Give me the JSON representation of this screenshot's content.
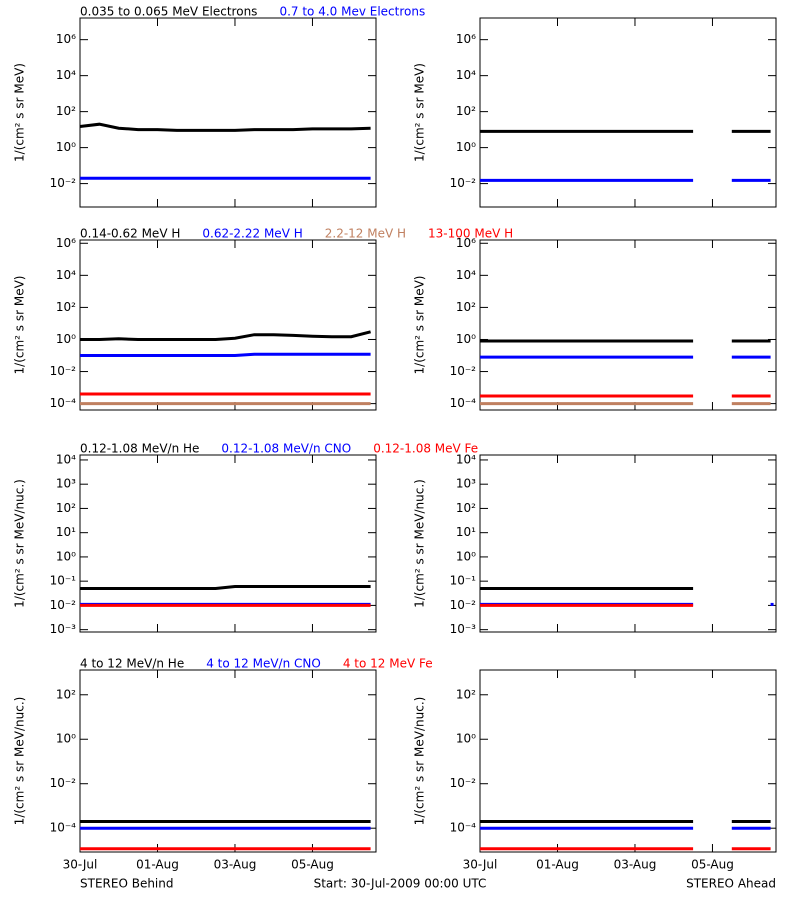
{
  "footer": {
    "left": "STEREO Behind",
    "center": "Start: 30-Jul-2009 00:00 UTC",
    "right": "STEREO Ahead"
  },
  "chart_data": [
    {
      "type": "line",
      "log_y": true,
      "ylabel": "1/(cm² s sr MeV)",
      "ylim": [
        0.0005,
        16000000
      ],
      "yticks": [
        {
          "value": 0.01,
          "label": "10⁻²"
        },
        {
          "value": 1,
          "label": "10⁰"
        },
        {
          "value": 100,
          "label": "10²"
        },
        {
          "value": 10000,
          "label": "10⁴"
        },
        {
          "value": 1000000,
          "label": "10⁶"
        }
      ],
      "x": [
        0,
        0.5,
        1,
        1.5,
        2,
        2.5,
        3,
        3.5,
        4,
        4.5,
        5,
        5.5,
        6,
        6.5,
        7,
        7.5
      ],
      "xlim": [
        0,
        7.64
      ],
      "xticks": [
        0,
        2,
        4,
        6
      ],
      "series": [
        {
          "name": "0.035 to 0.065 MeV Electrons",
          "color": "#000000",
          "behind": [
            15,
            20,
            12,
            10,
            10,
            9,
            9,
            9,
            9,
            10,
            10,
            10,
            11,
            11,
            11,
            12
          ],
          "ahead": [
            8,
            8,
            8,
            8,
            8,
            8,
            8,
            8,
            8,
            8,
            8,
            8,
            null,
            8,
            8,
            8
          ]
        },
        {
          "name": "0.7 to 4.0 Mev Electrons",
          "color": "#0000ff",
          "behind": [
            0.02,
            0.02,
            0.02,
            0.02,
            0.02,
            0.02,
            0.02,
            0.02,
            0.02,
            0.02,
            0.02,
            0.02,
            0.02,
            0.02,
            0.02,
            0.02
          ],
          "ahead": [
            0.015,
            0.015,
            0.015,
            0.015,
            0.015,
            0.015,
            0.015,
            0.015,
            0.015,
            0.015,
            0.015,
            0.015,
            null,
            0.015,
            0.015,
            0.015
          ]
        }
      ]
    },
    {
      "type": "line",
      "log_y": true,
      "ylabel": "1/(cm² s sr MeV)",
      "ylim": [
        4e-05,
        1600000
      ],
      "yticks": [
        {
          "value": 0.0001,
          "label": "10⁻⁴"
        },
        {
          "value": 0.01,
          "label": "10⁻²"
        },
        {
          "value": 1,
          "label": "10⁰"
        },
        {
          "value": 100,
          "label": "10²"
        },
        {
          "value": 10000,
          "label": "10⁴"
        },
        {
          "value": 1000000,
          "label": "10⁶"
        }
      ],
      "x": [
        0,
        0.5,
        1,
        1.5,
        2,
        2.5,
        3,
        3.5,
        4,
        4.5,
        5,
        5.5,
        6,
        6.5,
        7,
        7.5
      ],
      "xlim": [
        0,
        7.64
      ],
      "xticks": [
        0,
        2,
        4,
        6
      ],
      "series": [
        {
          "name": "0.14-0.62 MeV H",
          "color": "#000000",
          "behind": [
            1,
            1,
            1.1,
            1,
            1,
            1,
            1,
            1,
            1.2,
            2,
            2,
            1.8,
            1.6,
            1.5,
            1.5,
            3
          ],
          "ahead": [
            0.8,
            0.8,
            0.8,
            0.8,
            0.8,
            0.8,
            0.8,
            0.8,
            0.8,
            0.8,
            0.8,
            0.8,
            null,
            0.8,
            0.8,
            0.8
          ]
        },
        {
          "name": "0.62-2.22 MeV H",
          "color": "#0000ff",
          "behind": [
            0.1,
            0.1,
            0.1,
            0.1,
            0.1,
            0.1,
            0.1,
            0.1,
            0.1,
            0.12,
            0.12,
            0.12,
            0.12,
            0.12,
            0.12,
            0.12
          ],
          "ahead": [
            0.08,
            0.08,
            0.08,
            0.08,
            0.08,
            0.08,
            0.08,
            0.08,
            0.08,
            0.08,
            0.08,
            0.08,
            null,
            0.08,
            0.08,
            0.08
          ]
        },
        {
          "name": "2.2-12 MeV H",
          "color": "#c08060",
          "behind": [
            0.0001,
            0.0001,
            0.0001,
            0.0001,
            0.0001,
            0.0001,
            0.0001,
            0.0001,
            0.0001,
            0.0001,
            0.0001,
            0.0001,
            0.0001,
            0.0001,
            0.0001,
            0.0001
          ],
          "ahead": [
            0.0001,
            0.0001,
            0.0001,
            0.0001,
            0.0001,
            0.0001,
            0.0001,
            0.0001,
            0.0001,
            0.0001,
            0.0001,
            0.0001,
            null,
            0.0001,
            0.0001,
            0.0001
          ]
        },
        {
          "name": "13-100 MeV H",
          "color": "#ff0000",
          "behind": [
            0.0004,
            0.0004,
            0.0004,
            0.0004,
            0.0004,
            0.0004,
            0.0004,
            0.0004,
            0.0004,
            0.0004,
            0.0004,
            0.0004,
            0.0004,
            0.0004,
            0.0004,
            0.0004
          ],
          "ahead": [
            0.0003,
            0.0003,
            0.0003,
            0.0003,
            0.0003,
            0.0003,
            0.0003,
            0.0003,
            0.0003,
            0.0003,
            0.0003,
            0.0003,
            null,
            0.0003,
            0.0003,
            0.0003
          ]
        }
      ]
    },
    {
      "type": "line",
      "log_y": true,
      "ylabel": "1/(cm² s sr MeV/nuc.)",
      "ylim": [
        0.0008,
        16000
      ],
      "yticks": [
        {
          "value": 0.001,
          "label": "10⁻³"
        },
        {
          "value": 0.01,
          "label": "10⁻²"
        },
        {
          "value": 0.1,
          "label": "10⁻¹"
        },
        {
          "value": 1,
          "label": "10⁰"
        },
        {
          "value": 10,
          "label": "10¹"
        },
        {
          "value": 100,
          "label": "10²"
        },
        {
          "value": 1000,
          "label": "10³"
        },
        {
          "value": 10000,
          "label": "10⁴"
        }
      ],
      "x": [
        0,
        0.5,
        1,
        1.5,
        2,
        2.5,
        3,
        3.5,
        4,
        4.5,
        5,
        5.5,
        6,
        6.5,
        7,
        7.5
      ],
      "xlim": [
        0,
        7.64
      ],
      "xticks": [
        0,
        2,
        4,
        6
      ],
      "series": [
        {
          "name": "0.12-1.08 MeV/n He",
          "color": "#000000",
          "behind": [
            0.05,
            0.05,
            0.05,
            0.05,
            0.05,
            0.05,
            0.05,
            0.05,
            0.06,
            0.06,
            0.06,
            0.06,
            0.06,
            0.06,
            0.06,
            0.06
          ],
          "ahead": [
            0.05,
            0.05,
            0.05,
            0.05,
            0.05,
            0.05,
            0.05,
            0.05,
            0.05,
            0.05,
            0.05,
            0.05,
            null,
            null,
            null,
            null
          ]
        },
        {
          "name": "0.12-1.08 MeV/n CNO",
          "color": "#0000ff",
          "behind": [
            0.011,
            0.011,
            0.011,
            0.011,
            0.011,
            0.011,
            0.011,
            0.011,
            0.011,
            0.011,
            0.011,
            0.011,
            0.011,
            0.011,
            0.011,
            0.011
          ],
          "ahead": [
            0.011,
            0.011,
            0.011,
            0.011,
            0.011,
            0.011,
            0.011,
            0.011,
            0.011,
            0.011,
            0.011,
            0.011,
            null,
            null,
            null,
            0.011
          ]
        },
        {
          "name": "0.12-1.08 MeV Fe",
          "color": "#ff0000",
          "behind": [
            0.01,
            0.01,
            0.01,
            0.01,
            0.01,
            0.01,
            0.01,
            0.01,
            0.01,
            0.01,
            0.01,
            0.01,
            0.01,
            0.01,
            0.01,
            0.01
          ],
          "ahead": [
            0.01,
            0.01,
            0.01,
            0.01,
            0.01,
            0.01,
            0.01,
            0.01,
            0.01,
            0.01,
            0.01,
            0.01,
            null,
            null,
            null,
            null
          ]
        }
      ]
    },
    {
      "type": "line",
      "log_y": true,
      "ylabel": "1/(cm² s sr MeV/nuc.)",
      "ylim": [
        8.5e-06,
        1300
      ],
      "yticks": [
        {
          "value": 0.0001,
          "label": "10⁻⁴"
        },
        {
          "value": 0.01,
          "label": "10⁻²"
        },
        {
          "value": 1,
          "label": "10⁰"
        },
        {
          "value": 100,
          "label": "10²"
        }
      ],
      "x": [
        0,
        0.5,
        1,
        1.5,
        2,
        2.5,
        3,
        3.5,
        4,
        4.5,
        5,
        5.5,
        6,
        6.5,
        7,
        7.5
      ],
      "xlim": [
        0,
        7.64
      ],
      "xticks": [
        {
          "value": 0,
          "label": "30-Jul"
        },
        {
          "value": 2,
          "label": "01-Aug"
        },
        {
          "value": 4,
          "label": "03-Aug"
        },
        {
          "value": 6,
          "label": "05-Aug"
        }
      ],
      "series": [
        {
          "name": "4 to 12 MeV/n He",
          "color": "#000000",
          "behind": [
            0.0002,
            0.0002,
            0.0002,
            0.0002,
            0.0002,
            0.0002,
            0.0002,
            0.0002,
            0.0002,
            0.0002,
            0.0002,
            0.0002,
            0.0002,
            0.0002,
            0.0002,
            0.0002
          ],
          "ahead": [
            0.0002,
            0.0002,
            0.0002,
            0.0002,
            0.0002,
            0.0002,
            0.0002,
            0.0002,
            0.0002,
            0.0002,
            0.0002,
            0.0002,
            null,
            0.0002,
            0.0002,
            0.0002
          ]
        },
        {
          "name": "4 to 12 MeV/n CNO",
          "color": "#0000ff",
          "behind": [
            0.0001,
            0.0001,
            0.0001,
            0.0001,
            0.0001,
            0.0001,
            0.0001,
            0.0001,
            0.0001,
            0.0001,
            0.0001,
            0.0001,
            0.0001,
            0.0001,
            0.0001,
            0.0001
          ],
          "ahead": [
            0.0001,
            0.0001,
            0.0001,
            0.0001,
            0.0001,
            0.0001,
            0.0001,
            0.0001,
            0.0001,
            0.0001,
            0.0001,
            0.0001,
            null,
            0.0001,
            0.0001,
            0.0001
          ]
        },
        {
          "name": "4 to 12 MeV Fe",
          "color": "#ff0000",
          "behind": [
            1.2e-05,
            1.2e-05,
            1.2e-05,
            1.2e-05,
            1.2e-05,
            1.2e-05,
            1.2e-05,
            1.2e-05,
            1.2e-05,
            1.2e-05,
            1.2e-05,
            1.2e-05,
            1.2e-05,
            1.2e-05,
            1.2e-05,
            1.2e-05
          ],
          "ahead": [
            1.2e-05,
            1.2e-05,
            1.2e-05,
            1.2e-05,
            1.2e-05,
            1.2e-05,
            1.2e-05,
            1.2e-05,
            1.2e-05,
            1.2e-05,
            1.2e-05,
            1.2e-05,
            null,
            1.2e-05,
            1.2e-05,
            1.2e-05
          ]
        }
      ]
    }
  ]
}
